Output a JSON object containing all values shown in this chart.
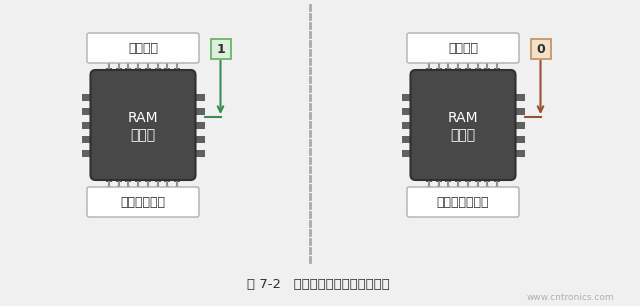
{
  "bg_color": "#f0f0f0",
  "chip_color": "#484848",
  "chip_edge": "#303030",
  "pin_color": "#909090",
  "pin_nub_color": "#606060",
  "wire_green": "#3a8c50",
  "wire_brown": "#9b5030",
  "label_1_bg": "#ddf0dd",
  "label_1_border": "#60b060",
  "label_0_bg": "#f5e0c8",
  "label_0_border": "#c09060",
  "box_fill": "#ffffff",
  "box_border": "#b0b0b0",
  "text_dark": "#303030",
  "chip_text": "#ffffff",
  "divider_color": "#aaaaaa",
  "watermark_color": "#b0b0b0",
  "caption": "图 7-2   存储器包括读模式与写模式",
  "watermark": "www.cntronics.com",
  "addr_label": "单元地址",
  "left_data_label": "单元的新数据",
  "right_data_label": "单元的当前数据",
  "left_chip_line1": "RAM",
  "left_chip_line2": "写模式",
  "right_chip_line1": "RAM",
  "right_chip_line2": "读模式"
}
